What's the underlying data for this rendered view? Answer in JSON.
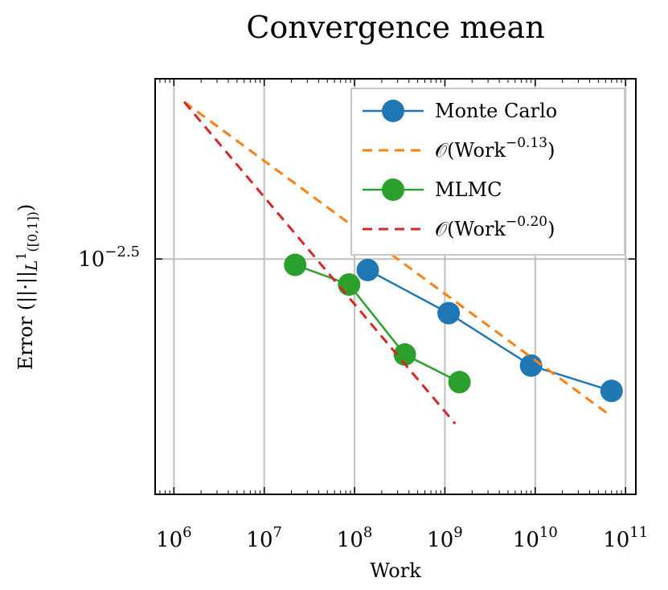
{
  "chart_data": {
    "type": "line",
    "title": "Convergence mean",
    "xlabel": "Work",
    "ylabel": {
      "prefix": "Error (||·||",
      "sub": "L",
      "sup": "1",
      "sub2": "([0,1])",
      "suffix": ")"
    },
    "x_scale": "log",
    "y_scale": "log",
    "xlim": [
      620000,
      130000000000
    ],
    "ylim": [
      0.0011,
      0.0071
    ],
    "grid": true,
    "legend_position": "top-right",
    "x_ticks": [
      {
        "value": 1000000,
        "base": "10",
        "exp": "6"
      },
      {
        "value": 10000000,
        "base": "10",
        "exp": "7"
      },
      {
        "value": 100000000,
        "base": "10",
        "exp": "8"
      },
      {
        "value": 1000000000,
        "base": "10",
        "exp": "9"
      },
      {
        "value": 10000000000,
        "base": "10",
        "exp": "10"
      },
      {
        "value": 100000000000,
        "base": "10",
        "exp": "11"
      }
    ],
    "y_ticks": [
      {
        "value": 0.0031623,
        "base": "10",
        "exp": "−2.5"
      }
    ],
    "series": [
      {
        "name": "Monte Carlo",
        "kind": "markers",
        "color": "#1f77b4",
        "x": [
          140000000,
          1100000000,
          9000000000,
          70000000000
        ],
        "y": [
          0.00301,
          0.00248,
          0.00196,
          0.00175
        ]
      },
      {
        "name": "𝒪(Work",
        "name_sup": "−0.13",
        "name_suffix": ")",
        "kind": "dashed",
        "color": "#ff7f0e",
        "x": [
          1300000,
          70000000000
        ],
        "y": [
          0.0064,
          0.00156
        ]
      },
      {
        "name": "MLMC",
        "kind": "markers",
        "color": "#2ca02c",
        "x": [
          22000000,
          87000000,
          360000000,
          1450000000
        ],
        "y": [
          0.00308,
          0.00282,
          0.00206,
          0.00182
        ]
      },
      {
        "name": "𝒪(Work",
        "name_sup": "−0.20",
        "name_suffix": ")",
        "kind": "dashed",
        "color": "#d62728",
        "x": [
          1300000,
          1300000000
        ],
        "y": [
          0.0064,
          0.00151
        ]
      }
    ]
  }
}
